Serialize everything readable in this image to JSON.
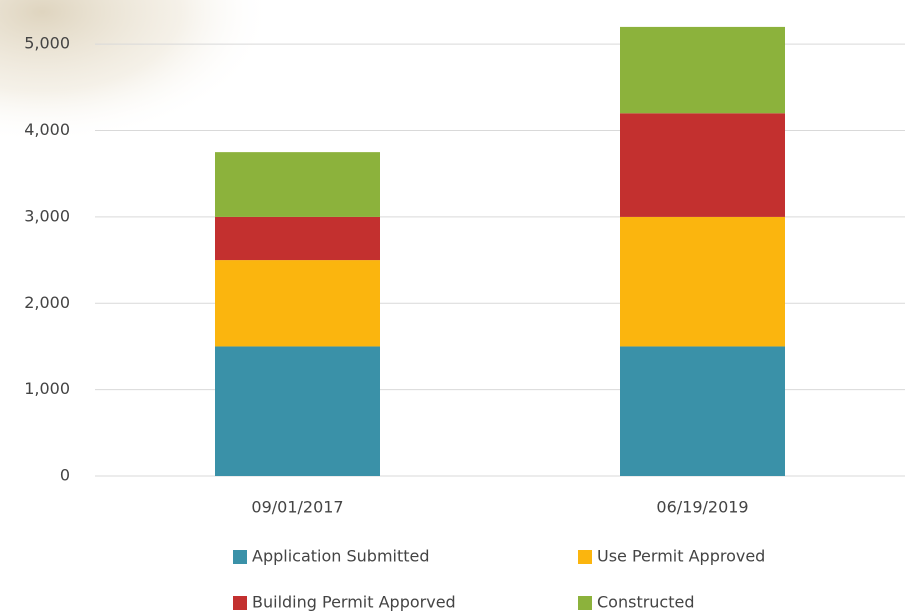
{
  "chart_data": {
    "type": "stacked-bar",
    "categories": [
      "09/01/2017",
      "06/19/2019"
    ],
    "series": [
      {
        "name": "Application Submitted",
        "color": "#3a91a8",
        "values": [
          1500,
          1500
        ]
      },
      {
        "name": "Use Permit Approved",
        "color": "#fbb50e",
        "values": [
          1000,
          1500
        ]
      },
      {
        "name": "Building Permit Apporved",
        "color": "#c3302f",
        "values": [
          500,
          1200
        ]
      },
      {
        "name": "Constructed",
        "color": "#8cb23c",
        "values": [
          750,
          1000
        ]
      }
    ],
    "ylim": [
      0,
      5500
    ],
    "yticks": [
      0,
      {
        "value": 1000,
        "label": "1,000"
      },
      {
        "value": 2000,
        "label": "2,000"
      },
      {
        "value": 3000,
        "label": "3,000"
      },
      {
        "value": 4000,
        "label": "4,000"
      },
      {
        "value": 5000,
        "label": "5,000"
      }
    ],
    "grid": true,
    "legend": "bottom"
  }
}
